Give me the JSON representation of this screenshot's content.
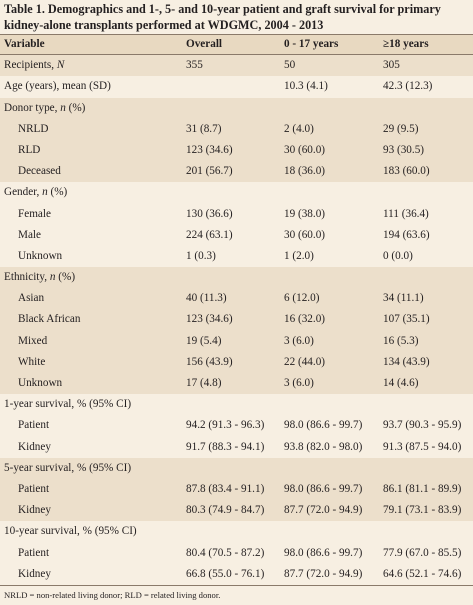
{
  "caption": "Table 1. Demographics and 1-, 5- and 10-year patient and graft survival for primary kidney-alone transplants performed at WDGMC, 2004 - 2013",
  "columns": [
    "Variable",
    "Overall",
    "0 - 17 years",
    "≥18 years"
  ],
  "rows": [
    {
      "label": "Recipients, N",
      "indent": false,
      "alt": true,
      "values": [
        "355",
        "50",
        "305"
      ]
    },
    {
      "label": "Age (years), mean (SD)",
      "indent": false,
      "alt": false,
      "values": [
        "",
        "10.3 (4.1)",
        "42.3 (12.3)"
      ]
    },
    {
      "label": "Donor type, n (%)",
      "indent": false,
      "alt": true,
      "values": [
        "",
        "",
        ""
      ]
    },
    {
      "label": "NRLD",
      "indent": true,
      "alt": true,
      "values": [
        "31 (8.7)",
        "2 (4.0)",
        "29 (9.5)"
      ]
    },
    {
      "label": "RLD",
      "indent": true,
      "alt": true,
      "values": [
        "123 (34.6)",
        "30 (60.0)",
        "93 (30.5)"
      ]
    },
    {
      "label": "Deceased",
      "indent": true,
      "alt": true,
      "values": [
        "201 (56.7)",
        "18 (36.0)",
        "183 (60.0)"
      ]
    },
    {
      "label": "Gender, n (%)",
      "indent": false,
      "alt": false,
      "values": [
        "",
        "",
        ""
      ]
    },
    {
      "label": "Female",
      "indent": true,
      "alt": false,
      "values": [
        "130 (36.6)",
        "19 (38.0)",
        "111 (36.4)"
      ]
    },
    {
      "label": "Male",
      "indent": true,
      "alt": false,
      "values": [
        "224 (63.1)",
        "30 (60.0)",
        "194 (63.6)"
      ]
    },
    {
      "label": "Unknown",
      "indent": true,
      "alt": false,
      "values": [
        "1 (0.3)",
        "1 (2.0)",
        "0 (0.0)"
      ]
    },
    {
      "label": "Ethnicity, n (%)",
      "indent": false,
      "alt": true,
      "values": [
        "",
        "",
        ""
      ]
    },
    {
      "label": "Asian",
      "indent": true,
      "alt": true,
      "values": [
        "40 (11.3)",
        "6 (12.0)",
        "34 (11.1)"
      ]
    },
    {
      "label": "Black African",
      "indent": true,
      "alt": true,
      "values": [
        "123 (34.6)",
        "16 (32.0)",
        "107 (35.1)"
      ]
    },
    {
      "label": "Mixed",
      "indent": true,
      "alt": true,
      "values": [
        "19 (5.4)",
        "3 (6.0)",
        "16 (5.3)"
      ]
    },
    {
      "label": "White",
      "indent": true,
      "alt": true,
      "values": [
        "156 (43.9)",
        "22 (44.0)",
        "134 (43.9)"
      ]
    },
    {
      "label": "Unknown",
      "indent": true,
      "alt": true,
      "values": [
        "17 (4.8)",
        "3 (6.0)",
        "14 (4.6)"
      ]
    },
    {
      "label": "1-year survival, % (95% CI)",
      "indent": false,
      "alt": false,
      "values": [
        "",
        "",
        ""
      ]
    },
    {
      "label": "Patient",
      "indent": true,
      "alt": false,
      "values": [
        "94.2 (91.3 - 96.3)",
        "98.0 (86.6 - 99.7)",
        "93.7 (90.3 - 95.9)"
      ]
    },
    {
      "label": "Kidney",
      "indent": true,
      "alt": false,
      "values": [
        "91.7 (88.3 - 94.1)",
        "93.8 (82.0 - 98.0)",
        "91.3 (87.5 - 94.0)"
      ]
    },
    {
      "label": "5-year survival, % (95% CI)",
      "indent": false,
      "alt": true,
      "values": [
        "",
        "",
        ""
      ]
    },
    {
      "label": "Patient",
      "indent": true,
      "alt": true,
      "values": [
        "87.8 (83.4 - 91.1)",
        "98.0 (86.6 - 99.7)",
        "86.1 (81.1 - 89.9)"
      ]
    },
    {
      "label": "Kidney",
      "indent": true,
      "alt": true,
      "values": [
        "80.3 (74.9 - 84.7)",
        "87.7 (72.0 - 94.9)",
        "79.1 (73.1 - 83.9)"
      ]
    },
    {
      "label": "10-year survival, % (95% CI)",
      "indent": false,
      "alt": false,
      "values": [
        "",
        "",
        ""
      ]
    },
    {
      "label": "Patient",
      "indent": true,
      "alt": false,
      "values": [
        "80.4 (70.5 - 87.2)",
        "98.0 (86.6 - 99.7)",
        "77.9 (67.0 - 85.5)"
      ]
    },
    {
      "label": "Kidney",
      "indent": true,
      "alt": false,
      "values": [
        "66.8 (55.0 - 76.1)",
        "87.7 (72.0 - 94.9)",
        "64.6 (52.1 - 74.6)"
      ]
    }
  ],
  "footnote": "NRLD = non-related living donor; RLD = related living donor."
}
